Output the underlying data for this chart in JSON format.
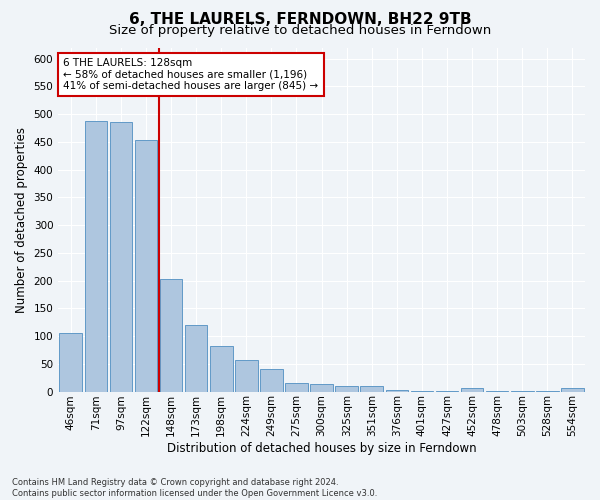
{
  "title": "6, THE LAURELS, FERNDOWN, BH22 9TB",
  "subtitle": "Size of property relative to detached houses in Ferndown",
  "xlabel": "Distribution of detached houses by size in Ferndown",
  "ylabel": "Number of detached properties",
  "categories": [
    "46sqm",
    "71sqm",
    "97sqm",
    "122sqm",
    "148sqm",
    "173sqm",
    "198sqm",
    "224sqm",
    "249sqm",
    "275sqm",
    "300sqm",
    "325sqm",
    "351sqm",
    "376sqm",
    "401sqm",
    "427sqm",
    "452sqm",
    "478sqm",
    "503sqm",
    "528sqm",
    "554sqm"
  ],
  "values": [
    105,
    487,
    485,
    453,
    202,
    120,
    82,
    57,
    40,
    15,
    14,
    10,
    10,
    2,
    1,
    1,
    7,
    1,
    1,
    1,
    7
  ],
  "bar_color": "#aec6df",
  "bar_edge_color": "#6199c7",
  "background_color": "#f0f4f8",
  "plot_bg_color": "#f0f4f8",
  "grid_color": "#ffffff",
  "red_line_x": 3.5,
  "annotation_text": "6 THE LAURELS: 128sqm\n← 58% of detached houses are smaller (1,196)\n41% of semi-detached houses are larger (845) →",
  "annotation_box_color": "#ffffff",
  "annotation_box_edge": "#cc0000",
  "red_line_color": "#cc0000",
  "title_fontsize": 11,
  "subtitle_fontsize": 9.5,
  "ylabel_fontsize": 8.5,
  "xlabel_fontsize": 8.5,
  "tick_fontsize": 7.5,
  "annot_fontsize": 7.5,
  "footnote": "Contains HM Land Registry data © Crown copyright and database right 2024.\nContains public sector information licensed under the Open Government Licence v3.0.",
  "footnote_fontsize": 6,
  "ylim": [
    0,
    620
  ]
}
